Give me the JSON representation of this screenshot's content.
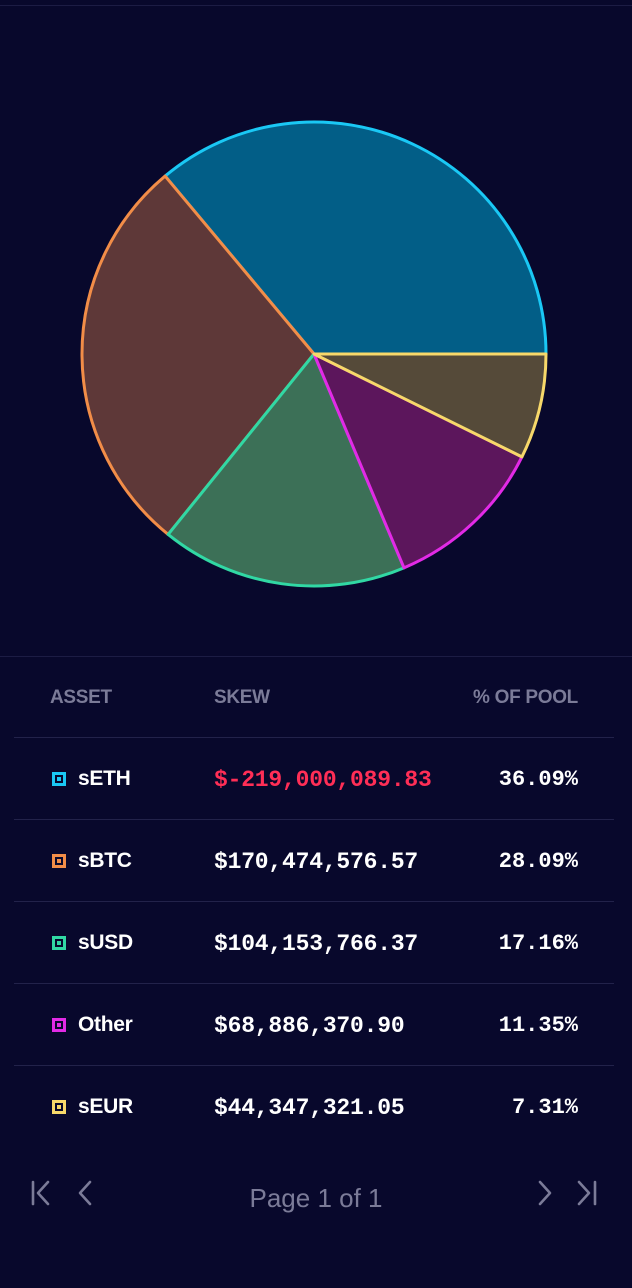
{
  "chart_data": {
    "type": "pie",
    "slices": [
      {
        "label": "sETH",
        "value": 36.09,
        "fill": "#025e87",
        "stroke": "#1ac8f5"
      },
      {
        "label": "sBTC",
        "value": 28.09,
        "fill": "#5e3838",
        "stroke": "#f28d48"
      },
      {
        "label": "sUSD",
        "value": 17.16,
        "fill": "#3c7057",
        "stroke": "#31d8a4"
      },
      {
        "label": "Other",
        "value": 11.35,
        "fill": "#5c165c",
        "stroke": "#e22ae6"
      },
      {
        "label": "sEUR",
        "value": 7.31,
        "fill": "#554a39",
        "stroke": "#f7d86a"
      }
    ]
  },
  "table": {
    "headers": {
      "asset": "ASSET",
      "skew": "SKEW",
      "pct": "% OF POOL"
    },
    "rows": [
      {
        "asset": "sETH",
        "skew": "$-219,000,089.83",
        "pct": "36.09%",
        "negative": true,
        "color": "#1ac8f5"
      },
      {
        "asset": "sBTC",
        "skew": "$170,474,576.57",
        "pct": "28.09%",
        "negative": false,
        "color": "#f28d48"
      },
      {
        "asset": "sUSD",
        "skew": "$104,153,766.37",
        "pct": "17.16%",
        "negative": false,
        "color": "#31d8a4"
      },
      {
        "asset": "Other",
        "skew": "$68,886,370.90",
        "pct": "11.35%",
        "negative": false,
        "color": "#e22ae6"
      },
      {
        "asset": "sEUR",
        "skew": "$44,347,321.05",
        "pct": "7.31%",
        "negative": false,
        "color": "#f7d86a"
      }
    ]
  },
  "pagination": {
    "label": "Page 1 of 1",
    "icons": {
      "first": "first-page-icon",
      "prev": "chevron-left-icon",
      "next": "chevron-right-icon",
      "last": "last-page-icon"
    }
  },
  "colors": {
    "background": "#08082c",
    "muted_text": "#7b7b98",
    "negative": "#ff2e56",
    "divider": "#22224a"
  }
}
